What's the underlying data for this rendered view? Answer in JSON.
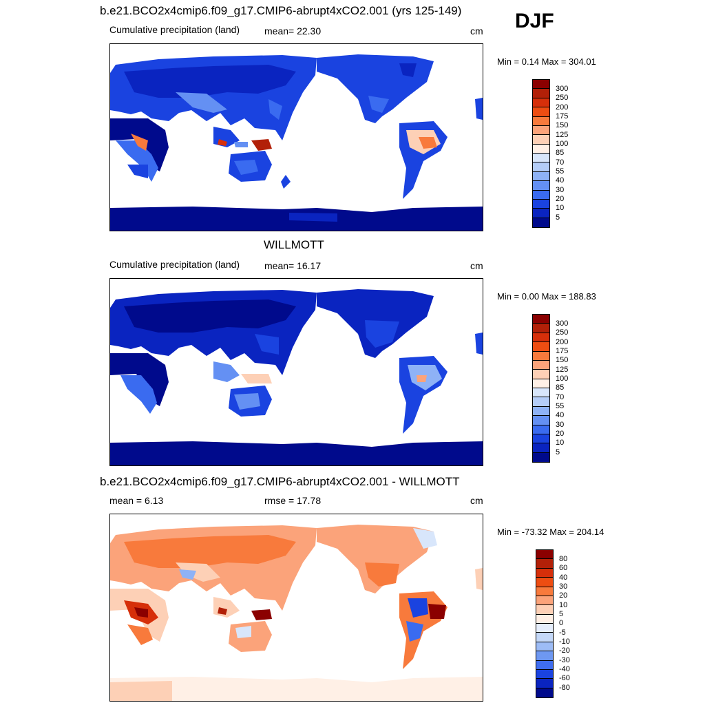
{
  "season": "DJF",
  "panels": [
    {
      "title": "b.e21.BCO2x4cmip6.f09_g17.CMIP6-abrupt4xCO2.001 (yrs 125-149)",
      "left_label": "Cumulative precipitation (land)",
      "center_label": "mean=  22.30",
      "units": "cm",
      "minmax": "Min =   0.14 Max = 304.01",
      "palette": "precip",
      "ticks": [
        "300",
        "250",
        "200",
        "175",
        "150",
        "125",
        "100",
        "85",
        "70",
        "55",
        "40",
        "30",
        "20",
        "10",
        "5"
      ]
    },
    {
      "title": "WILLMOTT",
      "left_label": "Cumulative precipitation (land)",
      "center_label": "mean=  16.17",
      "units": "cm",
      "minmax": "Min =   0.00 Max = 188.83",
      "palette": "precip",
      "ticks": [
        "300",
        "250",
        "200",
        "175",
        "150",
        "125",
        "100",
        "85",
        "70",
        "55",
        "40",
        "30",
        "20",
        "10",
        "5"
      ]
    },
    {
      "title": "b.e21.BCO2x4cmip6.f09_g17.CMIP6-abrupt4xCO2.001 - WILLMOTT",
      "left_label": "mean =   6.13",
      "center_label": "rmse =  17.78",
      "units": "cm",
      "minmax": "Min = -73.32 Max = 204.14",
      "palette": "diff",
      "ticks": [
        "80",
        "60",
        "40",
        "30",
        "20",
        "10",
        "5",
        "0",
        "-5",
        "-10",
        "-20",
        "-30",
        "-40",
        "-60",
        "-80"
      ]
    }
  ],
  "colors": {
    "precip": [
      "#8b0000",
      "#b22008",
      "#d62f0a",
      "#ee4d12",
      "#f87a3c",
      "#fba37a",
      "#fdd0b6",
      "#fff0e6",
      "#d8e6fb",
      "#b4cdf8",
      "#8eb2f6",
      "#6490f3",
      "#3a6bf0",
      "#1a43e0",
      "#0a24c0",
      "#000a8c"
    ],
    "diff": [
      "#8b0000",
      "#b22008",
      "#d62f0a",
      "#ee4d12",
      "#f87a3c",
      "#fba37a",
      "#fdd0b6",
      "#fff0e6",
      "#e6eefc",
      "#c4d8f8",
      "#9dbcf6",
      "#6e98f2",
      "#3f6df0",
      "#1a43e0",
      "#0a24c0",
      "#000a8c"
    ]
  }
}
